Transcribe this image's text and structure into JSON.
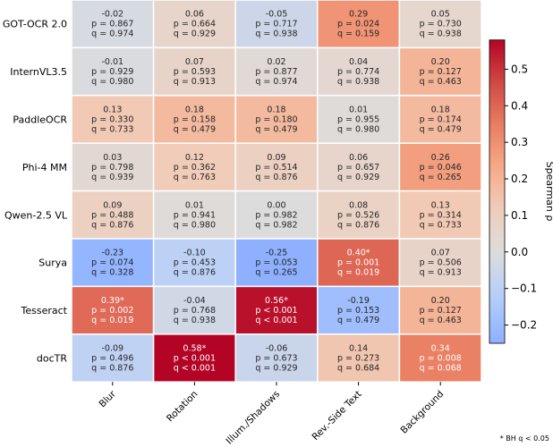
{
  "chart_data": {
    "type": "heatmap",
    "rows": [
      "GOT-OCR 2.0",
      "InternVL3.5",
      "PaddleOCR",
      "Phi-4 MM",
      "Qwen-2.5 VL",
      "Surya",
      "Tesseract",
      "docTR"
    ],
    "columns": [
      "Blur",
      "Rotation",
      "Illum./Shadows",
      "Rev.-Side Text",
      "Background"
    ],
    "rho": [
      [
        -0.02,
        0.06,
        -0.05,
        0.29,
        0.05
      ],
      [
        -0.01,
        0.07,
        0.02,
        0.04,
        0.2
      ],
      [
        0.13,
        0.18,
        0.18,
        0.01,
        0.18
      ],
      [
        0.03,
        0.12,
        0.09,
        0.06,
        0.26
      ],
      [
        0.09,
        0.01,
        0.0,
        0.08,
        0.13
      ],
      [
        -0.23,
        -0.1,
        -0.25,
        0.4,
        0.07
      ],
      [
        0.39,
        -0.04,
        0.56,
        -0.19,
        0.2
      ],
      [
        -0.09,
        0.58,
        -0.06,
        0.14,
        0.34
      ]
    ],
    "p": [
      [
        "0.867",
        "0.664",
        "0.717",
        "0.024",
        "0.730"
      ],
      [
        "0.929",
        "0.593",
        "0.877",
        "0.774",
        "0.127"
      ],
      [
        "0.330",
        "0.158",
        "0.180",
        "0.955",
        "0.174"
      ],
      [
        "0.798",
        "0.362",
        "0.514",
        "0.657",
        "0.046"
      ],
      [
        "0.488",
        "0.941",
        "0.982",
        "0.526",
        "0.314"
      ],
      [
        "0.074",
        "0.453",
        "0.053",
        "0.001",
        "0.506"
      ],
      [
        "0.002",
        "0.768",
        "< 0.001",
        "0.153",
        "0.127"
      ],
      [
        "0.496",
        "< 0.001",
        "0.673",
        "0.273",
        "0.008"
      ]
    ],
    "q": [
      [
        "0.974",
        "0.929",
        "0.938",
        "0.159",
        "0.938"
      ],
      [
        "0.980",
        "0.913",
        "0.974",
        "0.938",
        "0.463"
      ],
      [
        "0.733",
        "0.479",
        "0.479",
        "0.980",
        "0.479"
      ],
      [
        "0.939",
        "0.763",
        "0.876",
        "0.929",
        "0.265"
      ],
      [
        "0.876",
        "0.980",
        "0.982",
        "0.876",
        "0.733"
      ],
      [
        "0.328",
        "0.876",
        "0.265",
        "0.019",
        "0.913"
      ],
      [
        "0.019",
        "0.938",
        "< 0.001",
        "0.479",
        "0.463"
      ],
      [
        "0.876",
        "< 0.001",
        "0.929",
        "0.684",
        "0.068"
      ]
    ],
    "significant": [
      [
        false,
        false,
        false,
        false,
        false
      ],
      [
        false,
        false,
        false,
        false,
        false
      ],
      [
        false,
        false,
        false,
        false,
        false
      ],
      [
        false,
        false,
        false,
        false,
        false
      ],
      [
        false,
        false,
        false,
        false,
        false
      ],
      [
        false,
        false,
        false,
        true,
        false
      ],
      [
        true,
        false,
        true,
        false,
        false
      ],
      [
        false,
        true,
        false,
        false,
        false
      ]
    ],
    "colormap": "coolwarm",
    "color_range": [
      -0.58,
      0.58
    ],
    "colorbar": {
      "label": "Spearman ρ",
      "range": [
        -0.25,
        0.58
      ],
      "ticks": [
        -0.2,
        -0.1,
        0.0,
        0.1,
        0.2,
        0.3,
        0.4,
        0.5
      ]
    },
    "footnote": "* BH q < 0.05"
  }
}
